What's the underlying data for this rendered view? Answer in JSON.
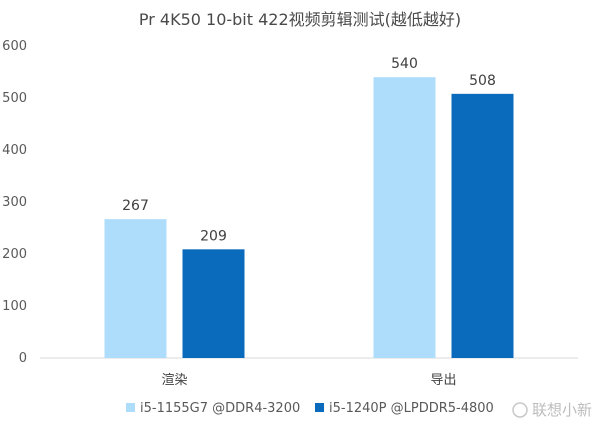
{
  "chart_data": {
    "type": "bar",
    "title": "Pr 4K50 10-bit 422视频剪辑测试(越低越好)",
    "categories": [
      "渲染",
      "导出"
    ],
    "series": [
      {
        "name": "i5-1155G7 @DDR4-3200",
        "values": [
          267,
          540
        ],
        "color": "#aedcfb"
      },
      {
        "name": "i5-1240P @LPDDR5-4800",
        "values": [
          209,
          508
        ],
        "color": "#0a6bbd"
      }
    ],
    "ylim": [
      0,
      600
    ],
    "yticks": [
      0,
      100,
      200,
      300,
      400,
      500,
      600
    ],
    "xlabel": "",
    "ylabel": "",
    "grid": false,
    "legend": "bottom"
  },
  "watermark": {
    "text": "联想小新"
  }
}
